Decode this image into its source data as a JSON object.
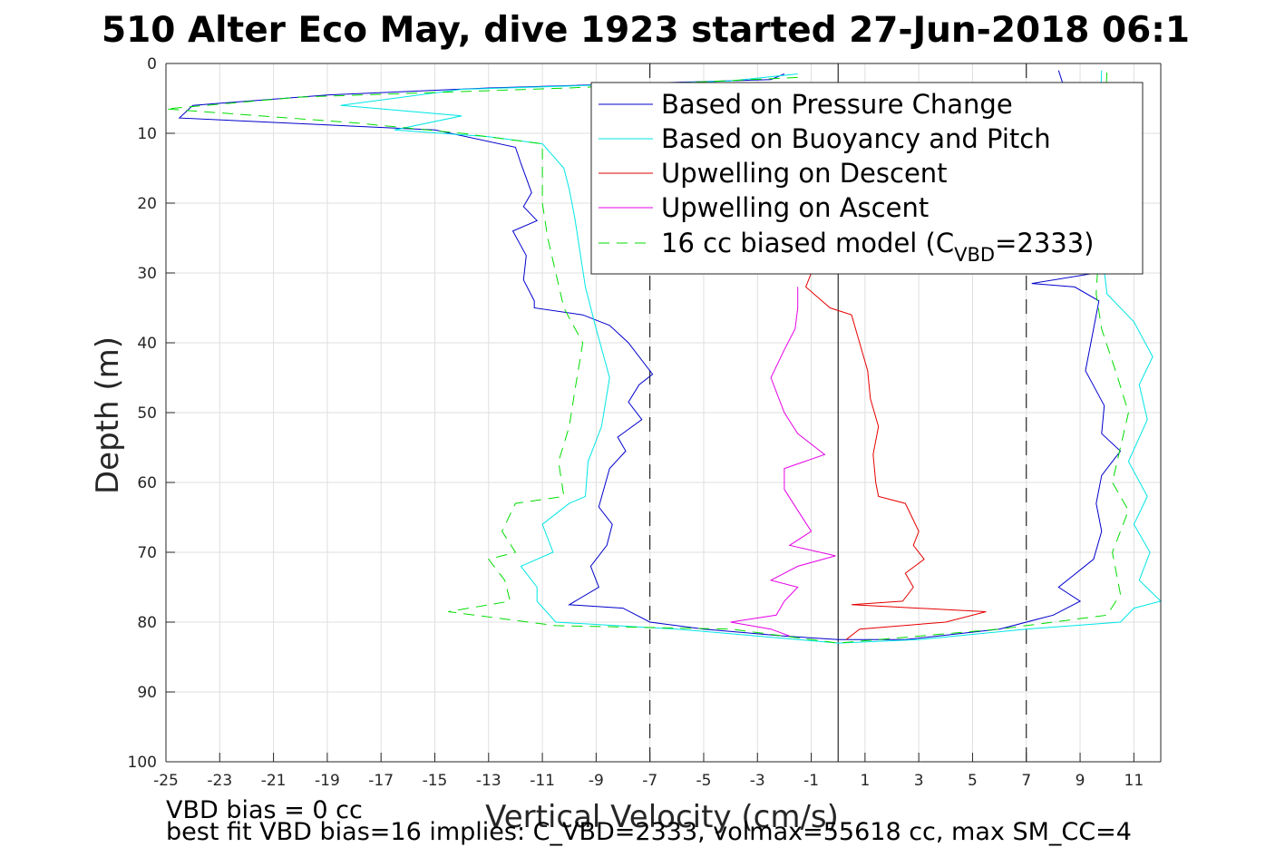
{
  "chart_data": {
    "type": "line",
    "title": "510 Alter Eco May, dive 1923 started 27-Jun-2018 06:1",
    "xlabel": "Vertical Velocity (cm/s)",
    "ylabel": "Depth (m)",
    "xlim": [
      -25,
      12
    ],
    "ylim": [
      0,
      100
    ],
    "y_reversed": true,
    "grid": true,
    "xticks": [
      -25,
      -23,
      -21,
      -19,
      -17,
      -15,
      -13,
      -11,
      -9,
      -7,
      -5,
      -3,
      -1,
      1,
      3,
      5,
      7,
      9,
      11
    ],
    "yticks": [
      0,
      10,
      20,
      30,
      40,
      50,
      60,
      70,
      80,
      90,
      100
    ],
    "legend_position": "top-right",
    "legend": [
      {
        "label": "Based on Pressure Change",
        "color": "#0000cc",
        "style": "solid"
      },
      {
        "label": "Based on Buoyancy and Pitch",
        "color": "#00e5e5",
        "style": "solid"
      },
      {
        "label": "Upwelling on Descent",
        "color": "#e60000",
        "style": "solid"
      },
      {
        "label": "Upwelling on Ascent",
        "color": "#e600e6",
        "style": "solid"
      },
      {
        "label_main": "16 cc biased model (C",
        "label_sub": "VBD",
        "label_end": "=2333)",
        "color": "#00dd00",
        "style": "dashed"
      }
    ],
    "reference_lines": [
      {
        "x": 0,
        "style": "solid",
        "color": "#000000"
      },
      {
        "x": -7,
        "style": "dashed",
        "color": "#000000"
      },
      {
        "x": 7,
        "style": "dashed",
        "color": "#000000"
      }
    ],
    "series": [
      {
        "name": "Based on Pressure Change",
        "color": "#0000cc",
        "dash": false,
        "points": [
          [
            -2.0,
            1.5
          ],
          [
            -2.5,
            2.3
          ],
          [
            -13,
            3.5
          ],
          [
            -19,
            4.5
          ],
          [
            -24,
            6
          ],
          [
            -24.5,
            7.8
          ],
          [
            -19,
            8.8
          ],
          [
            -15,
            9.5
          ],
          [
            -12,
            12
          ],
          [
            -11.8,
            14.3
          ],
          [
            -11.4,
            18.5
          ],
          [
            -11.7,
            20.5
          ],
          [
            -11.2,
            22.5
          ],
          [
            -12.1,
            24
          ],
          [
            -11.6,
            27.5
          ],
          [
            -11.7,
            31
          ],
          [
            -11.3,
            34
          ],
          [
            -11.3,
            35
          ],
          [
            -9.5,
            36
          ],
          [
            -8.5,
            37.5
          ],
          [
            -7.8,
            40
          ],
          [
            -6.9,
            44.5
          ],
          [
            -7.4,
            46
          ],
          [
            -7.8,
            48.5
          ],
          [
            -7.3,
            51
          ],
          [
            -8.2,
            53.5
          ],
          [
            -7.9,
            55.5
          ],
          [
            -8.5,
            58
          ],
          [
            -8.9,
            63.5
          ],
          [
            -8.4,
            66
          ],
          [
            -8.6,
            69
          ],
          [
            -9.2,
            72
          ],
          [
            -8.9,
            75
          ],
          [
            -10.0,
            77.5
          ],
          [
            -8.0,
            78
          ],
          [
            -7.0,
            80
          ],
          [
            -5.0,
            81
          ],
          [
            -2.0,
            82
          ],
          [
            0,
            82.5
          ],
          [
            2.5,
            82.5
          ],
          [
            6.0,
            81
          ],
          [
            8.0,
            79
          ],
          [
            9.0,
            77
          ],
          [
            8.2,
            75
          ],
          [
            9.5,
            71
          ],
          [
            9.8,
            67
          ],
          [
            9.6,
            63
          ],
          [
            9.8,
            59
          ],
          [
            10.5,
            55.5
          ],
          [
            9.8,
            53
          ],
          [
            9.9,
            49
          ],
          [
            9.2,
            44
          ],
          [
            9.5,
            38
          ],
          [
            9.7,
            34
          ],
          [
            8.8,
            32
          ],
          [
            7.2,
            31.5
          ],
          [
            9.6,
            30
          ],
          [
            9.8,
            20
          ],
          [
            8.2,
            1
          ]
        ]
      },
      {
        "name": "Based on Buoyancy and Pitch",
        "color": "#00e5e5",
        "dash": false,
        "points": [
          [
            -1.5,
            1.5
          ],
          [
            -4,
            2.5
          ],
          [
            -14,
            3.7
          ],
          [
            -18.5,
            6.0
          ],
          [
            -14,
            7.5
          ],
          [
            -16.5,
            9.5
          ],
          [
            -13,
            10.5
          ],
          [
            -11,
            11.5
          ],
          [
            -10.2,
            15
          ],
          [
            -10.0,
            18
          ],
          [
            -9.8,
            22
          ],
          [
            -9.6,
            27
          ],
          [
            -9.4,
            32
          ],
          [
            -9.0,
            38
          ],
          [
            -8.5,
            45
          ],
          [
            -8.8,
            52
          ],
          [
            -9.3,
            57
          ],
          [
            -9.4,
            62
          ],
          [
            -10.0,
            63
          ],
          [
            -11.0,
            66
          ],
          [
            -10.6,
            70
          ],
          [
            -11.8,
            72
          ],
          [
            -11.2,
            75
          ],
          [
            -11.2,
            77
          ],
          [
            -10.5,
            80
          ],
          [
            -6,
            81
          ],
          [
            -3,
            82
          ],
          [
            0,
            83
          ],
          [
            3,
            82.5
          ],
          [
            7,
            81
          ],
          [
            10.5,
            80
          ],
          [
            11.0,
            78
          ],
          [
            12.0,
            77
          ],
          [
            11.2,
            74
          ],
          [
            11.6,
            70
          ],
          [
            11.0,
            66
          ],
          [
            11.5,
            62
          ],
          [
            10.8,
            57
          ],
          [
            11.5,
            51
          ],
          [
            11.2,
            46
          ],
          [
            11.7,
            42
          ],
          [
            11.0,
            37
          ],
          [
            10.0,
            33
          ],
          [
            9.6,
            20
          ],
          [
            9.8,
            1
          ]
        ]
      },
      {
        "name": "Upwelling on Descent",
        "color": "#e60000",
        "dash": false,
        "points": [
          [
            -1.0,
            30
          ],
          [
            -1.2,
            32
          ],
          [
            -0.3,
            35
          ],
          [
            0.5,
            36
          ],
          [
            0.8,
            40
          ],
          [
            1.1,
            44
          ],
          [
            1.2,
            48
          ],
          [
            1.5,
            52
          ],
          [
            1.3,
            56
          ],
          [
            1.4,
            60
          ],
          [
            1.5,
            62
          ],
          [
            2.5,
            63
          ],
          [
            3.0,
            67
          ],
          [
            2.8,
            69
          ],
          [
            3.2,
            71
          ],
          [
            2.5,
            73
          ],
          [
            2.8,
            75
          ],
          [
            2.4,
            77
          ],
          [
            0.5,
            77.5
          ],
          [
            5.5,
            78.5
          ],
          [
            4.0,
            80
          ],
          [
            0.8,
            81
          ],
          [
            0.3,
            82.5
          ]
        ]
      },
      {
        "name": "Upwelling on Ascent",
        "color": "#e600e6",
        "dash": false,
        "points": [
          [
            -1.5,
            32
          ],
          [
            -1.5,
            35
          ],
          [
            -1.6,
            38
          ],
          [
            -2.0,
            41
          ],
          [
            -2.5,
            45
          ],
          [
            -2.0,
            50
          ],
          [
            -1.5,
            53
          ],
          [
            -0.5,
            56
          ],
          [
            -2.0,
            58
          ],
          [
            -2.0,
            61
          ],
          [
            -1.5,
            64
          ],
          [
            -1.0,
            67
          ],
          [
            -1.8,
            69
          ],
          [
            -0.1,
            70.5
          ],
          [
            -1.5,
            72
          ],
          [
            -2.5,
            74
          ],
          [
            -1.5,
            75
          ],
          [
            -2.0,
            77
          ],
          [
            -2.3,
            79
          ],
          [
            -4.0,
            80
          ],
          [
            -2.5,
            81
          ],
          [
            -1.8,
            82
          ]
        ]
      },
      {
        "name": "16 cc biased model (CVBD=2333)",
        "color": "#00dd00",
        "dash": true,
        "points": [
          [
            -1.5,
            2
          ],
          [
            -10,
            3.5
          ],
          [
            -20,
            4.8
          ],
          [
            -25,
            6.5
          ],
          [
            -18,
            8.5
          ],
          [
            -14,
            10
          ],
          [
            -11,
            11.5
          ],
          [
            -11.0,
            15
          ],
          [
            -11.0,
            20
          ],
          [
            -10.8,
            25
          ],
          [
            -10.5,
            30
          ],
          [
            -10.2,
            35
          ],
          [
            -9.5,
            40
          ],
          [
            -9.8,
            47
          ],
          [
            -10.0,
            52
          ],
          [
            -10.4,
            57
          ],
          [
            -10.2,
            62
          ],
          [
            -12.0,
            63
          ],
          [
            -12.5,
            67
          ],
          [
            -12.0,
            70
          ],
          [
            -13.0,
            71
          ],
          [
            -12.4,
            74
          ],
          [
            -12.2,
            77
          ],
          [
            -14.5,
            78.5
          ],
          [
            -10.5,
            80.5
          ],
          [
            -4,
            81
          ],
          [
            0,
            83
          ],
          [
            6,
            81
          ],
          [
            10,
            79
          ],
          [
            10.5,
            76
          ],
          [
            10.2,
            70
          ],
          [
            10.8,
            64
          ],
          [
            10.2,
            60
          ],
          [
            10.5,
            55
          ],
          [
            10.8,
            50
          ],
          [
            10.4,
            45
          ],
          [
            9.8,
            38
          ],
          [
            9.6,
            33
          ],
          [
            9.8,
            20
          ],
          [
            10.0,
            1
          ]
        ]
      }
    ]
  },
  "footer": {
    "line1": "VBD bias = 0 cc",
    "line2": "best fit VBD bias=16 implies: C_VBD=2333, volmax=55618 cc, max SM_CC=4"
  }
}
